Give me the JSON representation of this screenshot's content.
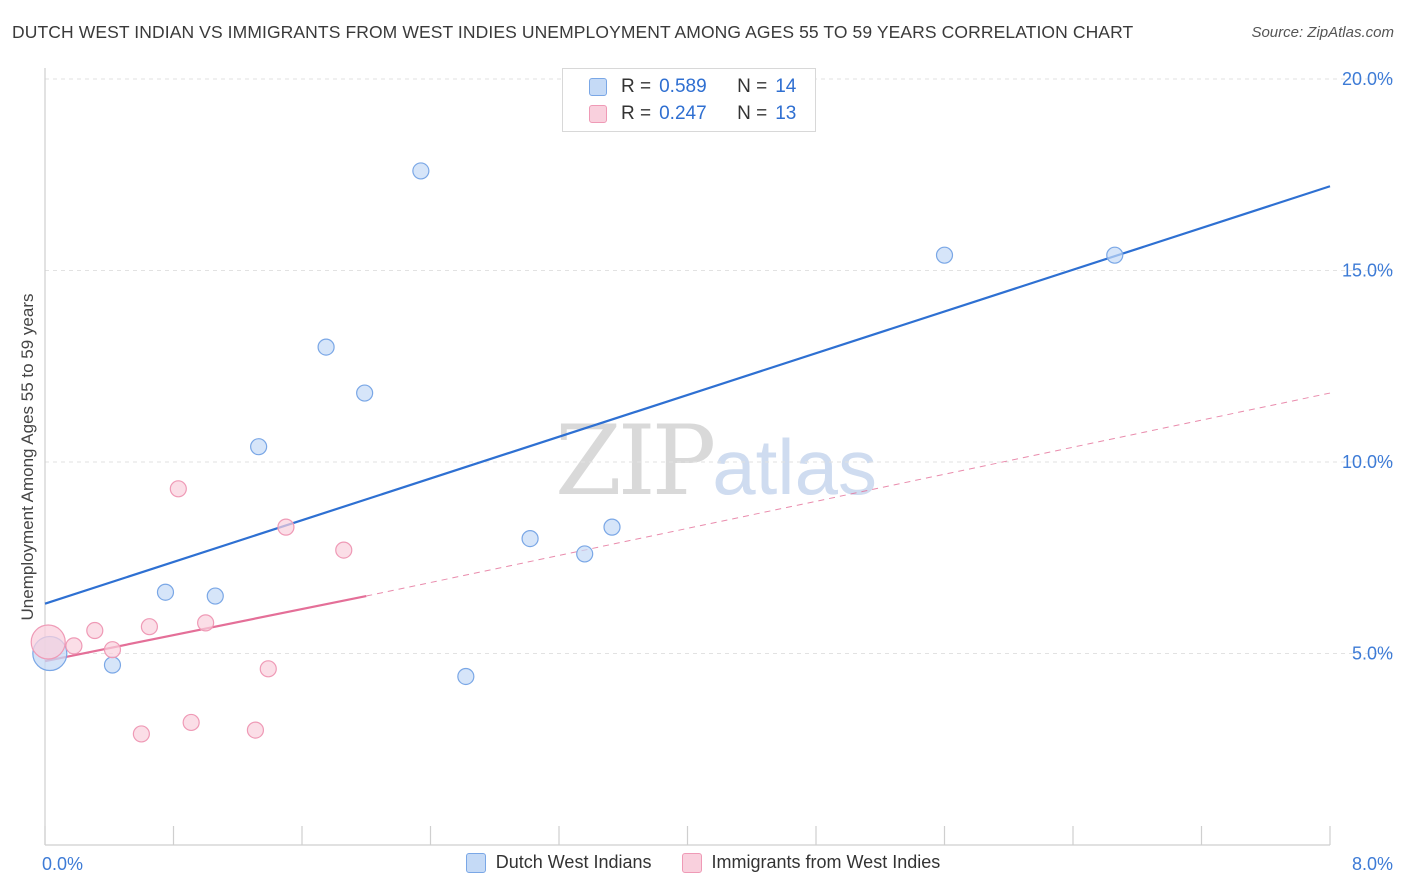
{
  "header": {
    "title": "DUTCH WEST INDIAN VS IMMIGRANTS FROM WEST INDIES UNEMPLOYMENT AMONG AGES 55 TO 59 YEARS CORRELATION CHART",
    "source": "Source: ZipAtlas.com"
  },
  "watermark": {
    "zip": "ZIP",
    "atlas": "atlas"
  },
  "legend_top": {
    "rows": [
      {
        "r_label": "R = ",
        "r_value": "0.589",
        "n_label": "N = ",
        "n_value": "14"
      },
      {
        "r_label": "R = ",
        "r_value": "0.247",
        "n_label": "N = ",
        "n_value": "13"
      }
    ]
  },
  "chart_data": {
    "type": "scatter",
    "title": "DUTCH WEST INDIAN VS IMMIGRANTS FROM WEST INDIES UNEMPLOYMENT AMONG AGES 55 TO 59 YEARS CORRELATION CHART",
    "xlabel": "",
    "ylabel": "Unemployment Among Ages 55 to 59 years",
    "xlim": [
      0,
      8
    ],
    "ylim": [
      0,
      20
    ],
    "x_tick_labels": [
      "0.0%",
      "8.0%"
    ],
    "y_ticks": [
      5,
      10,
      15,
      20
    ],
    "y_tick_labels": [
      "5.0%",
      "10.0%",
      "15.0%",
      "20.0%"
    ],
    "grid": true,
    "legend_position": "bottom-center",
    "series": [
      {
        "name": "Dutch West Indians",
        "color": "#7aa7e6",
        "fill": "#c5daf6",
        "line_color": "#2e70d2",
        "r": 0.589,
        "n": 14,
        "points": [
          {
            "x": 0.03,
            "y": 5.0,
            "big": true
          },
          {
            "x": 0.42,
            "y": 4.7
          },
          {
            "x": 0.75,
            "y": 6.6
          },
          {
            "x": 1.06,
            "y": 6.5
          },
          {
            "x": 1.33,
            "y": 10.4
          },
          {
            "x": 1.75,
            "y": 13.0
          },
          {
            "x": 1.99,
            "y": 11.8
          },
          {
            "x": 2.34,
            "y": 17.6
          },
          {
            "x": 2.62,
            "y": 4.4
          },
          {
            "x": 3.02,
            "y": 8.0
          },
          {
            "x": 3.36,
            "y": 7.6
          },
          {
            "x": 3.53,
            "y": 8.3
          },
          {
            "x": 5.6,
            "y": 15.4
          },
          {
            "x": 6.66,
            "y": 15.4
          }
        ],
        "trend": {
          "x0": 0,
          "y0": 6.3,
          "x1": 8,
          "y1": 17.2,
          "style": "solid"
        }
      },
      {
        "name": "Immigrants from West Indies",
        "color": "#ef9ab6",
        "fill": "#f9d0dd",
        "line_color": "#e46f98",
        "r": 0.247,
        "n": 13,
        "points": [
          {
            "x": 0.02,
            "y": 5.3,
            "big": true
          },
          {
            "x": 0.18,
            "y": 5.2
          },
          {
            "x": 0.31,
            "y": 5.6
          },
          {
            "x": 0.42,
            "y": 5.1
          },
          {
            "x": 0.6,
            "y": 2.9
          },
          {
            "x": 0.65,
            "y": 5.7
          },
          {
            "x": 0.83,
            "y": 9.3
          },
          {
            "x": 0.91,
            "y": 3.2
          },
          {
            "x": 1.0,
            "y": 5.8
          },
          {
            "x": 1.31,
            "y": 3.0
          },
          {
            "x": 1.39,
            "y": 4.6
          },
          {
            "x": 1.5,
            "y": 8.3
          },
          {
            "x": 1.86,
            "y": 7.7
          }
        ],
        "trend_solid": {
          "x0": 0,
          "y0": 4.8,
          "x1": 2.0,
          "y1": 6.5
        },
        "trend_dashed": {
          "x0": 2.0,
          "y0": 6.5,
          "x1": 8,
          "y1": 11.8
        }
      }
    ]
  }
}
